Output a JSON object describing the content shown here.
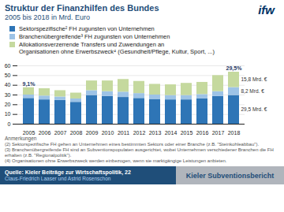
{
  "chart_data": {
    "type": "bar",
    "stacked": true,
    "title": "Struktur der Finanzhilfen des Bundes",
    "subtitle": "2005 bis 2018 in Mrd. Euro",
    "logo": "ifw",
    "categories": [
      "2005",
      "2006",
      "2007",
      "2008",
      "2009",
      "2010",
      "2011",
      "2012",
      "2013",
      "2014",
      "2015",
      "2016",
      "2017",
      "2018"
    ],
    "series": [
      {
        "name": "Sektorspezifische² FH zugunsten von Unternehmen",
        "color": "#2e75b6",
        "values": [
          26.5,
          25.0,
          24.5,
          22.5,
          29.5,
          28.5,
          27.5,
          26.5,
          25.5,
          25.0,
          25.0,
          26.0,
          28.5,
          29.5
        ]
      },
      {
        "name": "Branchenübergreifende³ FH zugunsten von Unternehmen",
        "color": "#9dc3e6",
        "values": [
          3.5,
          4.0,
          3.5,
          3.5,
          5.0,
          5.0,
          5.5,
          5.0,
          4.5,
          4.5,
          4.5,
          4.5,
          5.0,
          8.2
        ]
      },
      {
        "name": "Allokationsverzerrende Transfers und Zuwendungen an\nOrganisationen ohne Erwerbszweck⁴ (Gesundheit/Pflege, Kultur, Sport, ...)",
        "color": "#c5d99e",
        "values": [
          7.5,
          7.5,
          6.5,
          6.0,
          10.0,
          11.0,
          13.0,
          12.5,
          11.0,
          11.0,
          12.5,
          12.5,
          16.5,
          15.8
        ]
      }
    ],
    "ylim": [
      0,
      60
    ],
    "yticks": [
      0,
      10,
      20,
      30,
      40,
      50,
      60
    ],
    "grid": true,
    "legend": "top",
    "annotations": [
      {
        "text": "9,1%",
        "category": "2005"
      },
      {
        "text": "29,5%",
        "category": "2018"
      },
      {
        "text": "15,8 Mrd. €",
        "category": "2018",
        "series": "Allokationsverzerrende Transfers und Zuwendungen an\nOrganisationen ohne Erwerbszweck⁴ (Gesundheit/Pflege, Kultur, Sport, ...)"
      },
      {
        "text": "8,2 Mrd. €",
        "category": "2018",
        "series": "Branchenübergreifende³ FH zugunsten von Unternehmen"
      },
      {
        "text": "29,5 Mrd. €",
        "category": "2018",
        "series": "Sektorspezifische² FH zugunsten von Unternehmen"
      }
    ],
    "notes_title": "Anmerkungen",
    "notes": [
      "(2) Sektorspezifische FH gehen an Unternehmen eines bestimmten Sektors oder einer Branche (z.B. \"Steinkohleabbau\").",
      "(3) Branchenübergreifende FH sind an Subventionspopulaten ausgerichtet, wobei Unternehmen verschiedener Branchen die FH erhalten (z.B. \"Regionalpolitik\").",
      "(4) Organisationen ohne Erwerbszweck werden einbezogen, wenn sie marktgängige Leistungen anbieten."
    ],
    "source": [
      "Quelle: Kieler Beiträge zur Wirtschaftspolitik, 22",
      "Claus-Friedrich Laaser und Astrid Rosenschon"
    ],
    "footer": "Kieler Subventionsbericht"
  }
}
